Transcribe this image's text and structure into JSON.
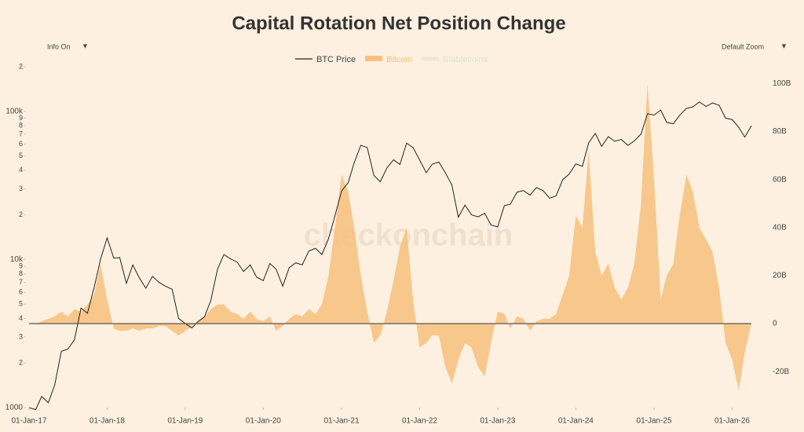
{
  "chart_data": {
    "type": "log-line-area",
    "title": "Capital Rotation Net Position Change",
    "controls": {
      "info": "Info On",
      "zoom": "Default Zoom",
      "arrow": "▼"
    },
    "watermark": "checkonchain",
    "x": [
      "2017-01-01",
      "2017-02-01",
      "2017-03-01",
      "2017-04-01",
      "2017-05-01",
      "2017-06-01",
      "2017-07-01",
      "2017-08-01",
      "2017-09-01",
      "2017-10-01",
      "2017-11-01",
      "2017-12-01",
      "2018-01-01",
      "2018-02-01",
      "2018-03-01",
      "2018-04-01",
      "2018-05-01",
      "2018-06-01",
      "2018-07-01",
      "2018-08-01",
      "2018-09-01",
      "2018-10-01",
      "2018-11-01",
      "2018-12-01",
      "2019-01-01",
      "2019-02-01",
      "2019-03-01",
      "2019-04-01",
      "2019-05-01",
      "2019-06-01",
      "2019-07-01",
      "2019-08-01",
      "2019-09-01",
      "2019-10-01",
      "2019-11-01",
      "2019-12-01",
      "2020-01-01",
      "2020-02-01",
      "2020-03-01",
      "2020-04-01",
      "2020-05-01",
      "2020-06-01",
      "2020-07-01",
      "2020-08-01",
      "2020-09-01",
      "2020-10-01",
      "2020-11-01",
      "2020-12-01",
      "2021-01-01",
      "2021-02-01",
      "2021-03-01",
      "2021-04-01",
      "2021-05-01",
      "2021-06-01",
      "2021-07-01",
      "2021-08-01",
      "2021-09-01",
      "2021-10-01",
      "2021-11-01",
      "2021-12-01",
      "2022-01-01",
      "2022-02-01",
      "2022-03-01",
      "2022-04-01",
      "2022-05-01",
      "2022-06-01",
      "2022-07-01",
      "2022-08-01",
      "2022-09-01",
      "2022-10-01",
      "2022-11-01",
      "2022-12-01",
      "2023-01-01",
      "2023-02-01",
      "2023-03-01",
      "2023-04-01",
      "2023-05-01",
      "2023-06-01",
      "2023-07-01",
      "2023-08-01",
      "2023-09-01",
      "2023-10-01",
      "2023-11-01",
      "2023-12-01",
      "2024-01-01",
      "2024-02-01",
      "2024-03-01",
      "2024-04-01",
      "2024-05-01",
      "2024-06-01",
      "2024-07-01",
      "2024-08-01",
      "2024-09-01",
      "2024-10-01",
      "2024-11-01",
      "2024-12-01",
      "2025-01-01",
      "2025-02-01",
      "2025-03-01",
      "2025-04-01",
      "2025-05-01",
      "2025-06-01",
      "2025-07-01",
      "2025-08-01",
      "2025-09-01",
      "2025-10-01",
      "2025-11-01",
      "2025-12-01",
      "2026-01-01",
      "2026-02-01",
      "2026-03-01",
      "2026-04-01"
    ],
    "xlim": [
      "2017-01-01",
      "2026-04-01"
    ],
    "xticks": [
      {
        "value": "2017-01-01",
        "label": "01-Jan-17"
      },
      {
        "value": "2018-01-01",
        "label": "01-Jan-18"
      },
      {
        "value": "2019-01-01",
        "label": "01-Jan-19"
      },
      {
        "value": "2020-01-01",
        "label": "01-Jan-20"
      },
      {
        "value": "2021-01-01",
        "label": "01-Jan-21"
      },
      {
        "value": "2022-01-01",
        "label": "01-Jan-22"
      },
      {
        "value": "2023-01-01",
        "label": "01-Jan-23"
      },
      {
        "value": "2024-01-01",
        "label": "01-Jan-24"
      },
      {
        "value": "2025-01-01",
        "label": "01-Jan-25"
      },
      {
        "value": "2026-01-01",
        "label": "01-Jan-26"
      }
    ],
    "ylog": true,
    "ylim": [
      1000,
      200000
    ],
    "yticks": [
      1000,
      {
        "value": 2000,
        "label": "2"
      },
      {
        "value": 3000,
        "label": "3"
      },
      {
        "value": 4000,
        "label": "4"
      },
      {
        "value": 5000,
        "label": "5"
      },
      {
        "value": 6000,
        "label": "6"
      },
      {
        "value": 7000,
        "label": "7"
      },
      {
        "value": 8000,
        "label": "8"
      },
      {
        "value": 9000,
        "label": "9"
      },
      {
        "value": 10000,
        "label": "10k"
      },
      {
        "value": 20000,
        "label": "2"
      },
      {
        "value": 30000,
        "label": "3"
      },
      {
        "value": 40000,
        "label": "4"
      },
      {
        "value": 50000,
        "label": "5"
      },
      {
        "value": 60000,
        "label": "6"
      },
      {
        "value": 70000,
        "label": "7"
      },
      {
        "value": 80000,
        "label": "8"
      },
      {
        "value": 90000,
        "label": "9"
      },
      {
        "value": 100000,
        "label": "100k"
      },
      {
        "value": 200000,
        "label": "2"
      }
    ],
    "y2lim": [
      -35,
      107
    ],
    "y2ticks": [
      {
        "value": -20,
        "label": "-20B"
      },
      0,
      {
        "value": 20,
        "label": "20B"
      },
      {
        "value": 40,
        "label": "40B"
      },
      {
        "value": 60,
        "label": "60B"
      },
      {
        "value": 80,
        "label": "80B"
      },
      {
        "value": 100,
        "label": "100B"
      }
    ],
    "series": [
      {
        "name": "BTC Price",
        "color": "#222222",
        "kind": "line",
        "values": [
          1000,
          970,
          1190,
          1080,
          1420,
          2400,
          2480,
          2870,
          4700,
          4340,
          6450,
          10000,
          14000,
          10200,
          10300,
          6900,
          9200,
          7500,
          6400,
          7700,
          7000,
          6600,
          6300,
          4000,
          3700,
          3450,
          3800,
          4100,
          5300,
          8600,
          10800,
          10100,
          9600,
          8300,
          9200,
          7600,
          7200,
          9400,
          8600,
          6600,
          8800,
          9500,
          9200,
          11400,
          11900,
          10800,
          13800,
          19700,
          29000,
          33000,
          45000,
          59000,
          57000,
          37000,
          33500,
          41500,
          47100,
          43800,
          61000,
          57000,
          47000,
          38500,
          44000,
          45500,
          38500,
          31800,
          19300,
          23300,
          20000,
          19400,
          20500,
          17100,
          16600,
          23100,
          23600,
          28500,
          29200,
          27200,
          30600,
          29200,
          25900,
          26900,
          34600,
          37700,
          44200,
          42600,
          61200,
          71000,
          58000,
          67500,
          62800,
          64600,
          58900,
          63300,
          70200,
          96400,
          94400,
          102000,
          84300,
          82500,
          94200,
          104600,
          107100,
          115700,
          108000,
          114000,
          110000,
          90000,
          88000,
          78000,
          67000,
          80000
        ]
      },
      {
        "name": "Bitcoin",
        "color": "#f7c07c",
        "kind": "area",
        "axis": "y2",
        "values": [
          0,
          0,
          1,
          2,
          3,
          5,
          3,
          6,
          5,
          8,
          12,
          25,
          10,
          -2,
          -3,
          -3,
          -2,
          -3,
          -2,
          -2,
          -1,
          -1,
          -3,
          -5,
          -3,
          -1,
          1,
          3,
          6,
          8,
          8,
          5,
          4,
          2,
          5,
          2,
          1,
          3,
          -3,
          -1,
          2,
          4,
          3,
          6,
          4,
          8,
          20,
          40,
          62,
          55,
          40,
          20,
          5,
          -8,
          -5,
          5,
          18,
          32,
          40,
          10,
          -10,
          -8,
          -5,
          -5,
          -18,
          -25,
          -15,
          -8,
          -10,
          -18,
          -22,
          -8,
          5,
          4,
          -2,
          3,
          2,
          -3,
          1,
          2,
          2,
          4,
          12,
          20,
          45,
          40,
          72,
          30,
          20,
          25,
          15,
          10,
          15,
          25,
          50,
          100,
          60,
          10,
          20,
          25,
          45,
          62,
          55,
          40,
          35,
          30,
          15,
          -8,
          -15,
          -28,
          -12,
          0
        ]
      },
      {
        "name": "Stablecoins",
        "color": "#d9e6cc",
        "kind": "hidden"
      }
    ]
  }
}
